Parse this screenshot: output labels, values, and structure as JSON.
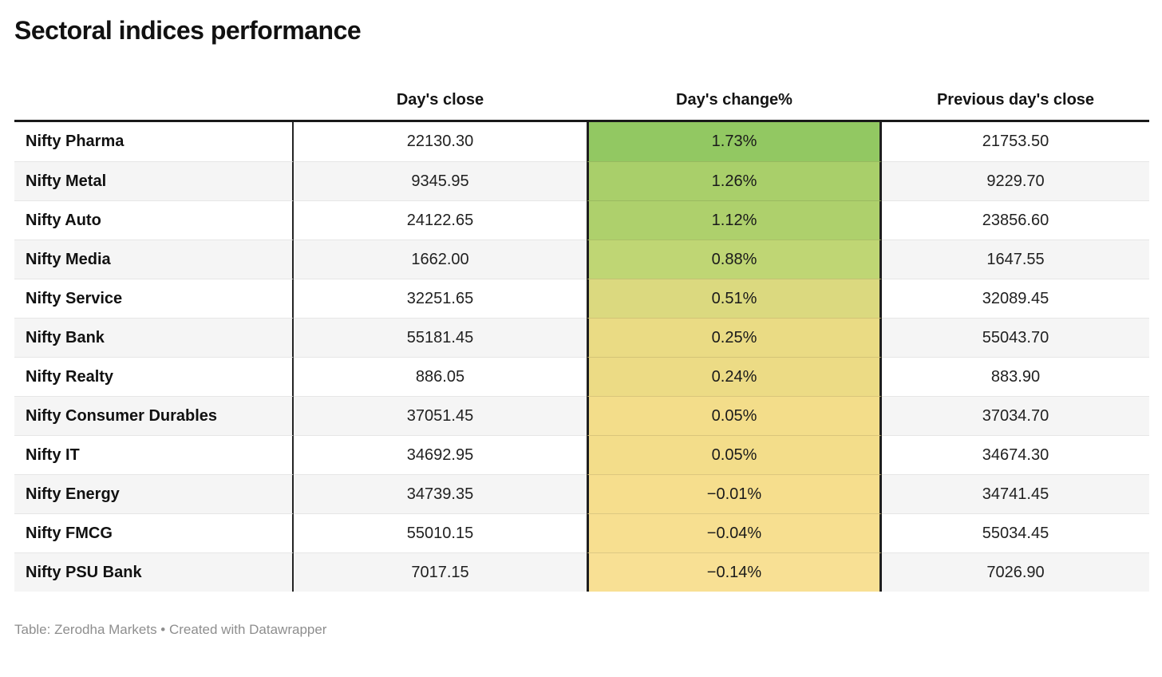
{
  "chart_data": {
    "type": "table",
    "title": "Sectoral indices performance",
    "columns": {
      "index": "",
      "close": "Day's close",
      "change": "Day's change%",
      "prev": "Previous day's close"
    },
    "heatmap_column": "Day's change%",
    "rows": [
      {
        "index": "Nifty Pharma",
        "close": "22130.30",
        "change": "1.73%",
        "prev": "21753.50",
        "cell_color": "#92c862"
      },
      {
        "index": "Nifty Metal",
        "close": "9345.95",
        "change": "1.26%",
        "prev": "9229.70",
        "cell_color": "#a9cf6a"
      },
      {
        "index": "Nifty Auto",
        "close": "24122.65",
        "change": "1.12%",
        "prev": "23856.60",
        "cell_color": "#aed06c"
      },
      {
        "index": "Nifty Media",
        "close": "1662.00",
        "change": "0.88%",
        "prev": "1647.55",
        "cell_color": "#bfd674"
      },
      {
        "index": "Nifty Service",
        "close": "32251.65",
        "change": "0.51%",
        "prev": "32089.45",
        "cell_color": "#dbd97f"
      },
      {
        "index": "Nifty Bank",
        "close": "55181.45",
        "change": "0.25%",
        "prev": "55043.70",
        "cell_color": "#eadb84"
      },
      {
        "index": "Nifty Realty",
        "close": "886.05",
        "change": "0.24%",
        "prev": "883.90",
        "cell_color": "#ecdb85"
      },
      {
        "index": "Nifty Consumer Durables",
        "close": "37051.45",
        "change": "0.05%",
        "prev": "37034.70",
        "cell_color": "#f3dd8a"
      },
      {
        "index": "Nifty IT",
        "close": "34692.95",
        "change": "0.05%",
        "prev": "34674.30",
        "cell_color": "#f3dd8a"
      },
      {
        "index": "Nifty Energy",
        "close": "34739.35",
        "change": "−0.01%",
        "prev": "34741.45",
        "cell_color": "#f6de8d"
      },
      {
        "index": "Nifty FMCG",
        "close": "55010.15",
        "change": "−0.04%",
        "prev": "55034.45",
        "cell_color": "#f7df90"
      },
      {
        "index": "Nifty PSU Bank",
        "close": "7017.15",
        "change": "−0.14%",
        "prev": "7026.90",
        "cell_color": "#f8e094"
      }
    ]
  },
  "footer": "Table: Zerodha Markets • Created with Datawrapper"
}
